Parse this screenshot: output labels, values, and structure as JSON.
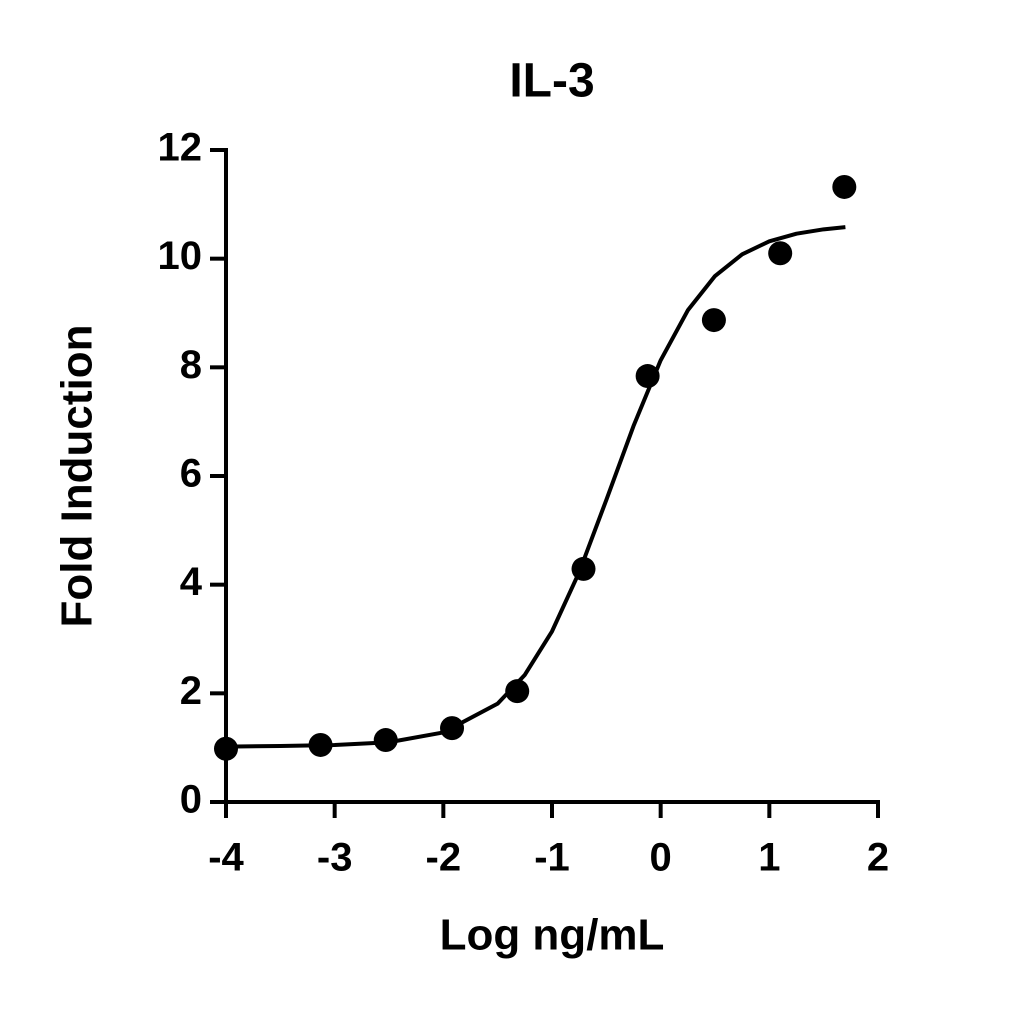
{
  "chart_data": {
    "type": "scatter",
    "title": "IL-3",
    "xlabel": "Log ng/mL",
    "ylabel": "Fold Induction",
    "series": [
      {
        "mode": "markers",
        "color": "#000000",
        "x": [
          -4,
          -3.13,
          -2.53,
          -1.92,
          -1.32,
          -0.71,
          -0.12,
          0.49,
          1.1,
          1.69
        ],
        "values": [
          0.98,
          1.05,
          1.14,
          1.36,
          2.04,
          4.29,
          7.84,
          8.87,
          10.1,
          11.32
        ]
      },
      {
        "mode": "line",
        "color": "#000000",
        "x": [
          -4,
          -3.5,
          -3,
          -2.5,
          -2,
          -1.5,
          -1.25,
          -1,
          -0.75,
          -0.5,
          -0.25,
          0,
          0.25,
          0.5,
          0.75,
          1,
          1.25,
          1.5,
          1.7
        ],
        "values": [
          1.02,
          1.03,
          1.05,
          1.1,
          1.28,
          1.81,
          2.34,
          3.14,
          4.23,
          5.56,
          6.92,
          8.13,
          9.05,
          9.68,
          10.08,
          10.32,
          10.46,
          10.54,
          10.58
        ]
      }
    ],
    "xlim": [
      -4,
      2
    ],
    "xticks": [
      -4,
      -3,
      -2,
      -1,
      0,
      1,
      2
    ],
    "ylim": [
      0,
      12
    ],
    "yticks": [
      0,
      2,
      4,
      6,
      8,
      10,
      12
    ]
  }
}
